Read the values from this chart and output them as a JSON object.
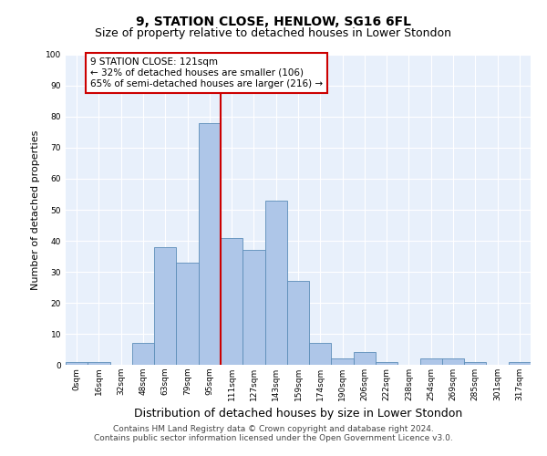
{
  "title": "9, STATION CLOSE, HENLOW, SG16 6FL",
  "subtitle": "Size of property relative to detached houses in Lower Stondon",
  "xlabel": "Distribution of detached houses by size in Lower Stondon",
  "ylabel": "Number of detached properties",
  "bin_labels": [
    "0sqm",
    "16sqm",
    "32sqm",
    "48sqm",
    "63sqm",
    "79sqm",
    "95sqm",
    "111sqm",
    "127sqm",
    "143sqm",
    "159sqm",
    "174sqm",
    "190sqm",
    "206sqm",
    "222sqm",
    "238sqm",
    "254sqm",
    "269sqm",
    "285sqm",
    "301sqm",
    "317sqm"
  ],
  "bar_heights": [
    1,
    1,
    0,
    7,
    38,
    33,
    78,
    41,
    37,
    53,
    27,
    7,
    2,
    4,
    1,
    0,
    2,
    2,
    1,
    0,
    1
  ],
  "bar_color": "#aec6e8",
  "bar_edge_color": "#5b8db8",
  "vline_x": 7.0,
  "vline_color": "#cc0000",
  "annotation_text": "9 STATION CLOSE: 121sqm\n← 32% of detached houses are smaller (106)\n65% of semi-detached houses are larger (216) →",
  "annotation_box_color": "#ffffff",
  "annotation_box_edge_color": "#cc0000",
  "ylim": [
    0,
    100
  ],
  "yticks": [
    0,
    10,
    20,
    30,
    40,
    50,
    60,
    70,
    80,
    90,
    100
  ],
  "background_color": "#e8f0fb",
  "grid_color": "#ffffff",
  "footer_line1": "Contains HM Land Registry data © Crown copyright and database right 2024.",
  "footer_line2": "Contains public sector information licensed under the Open Government Licence v3.0.",
  "title_fontsize": 10,
  "subtitle_fontsize": 9,
  "xlabel_fontsize": 9,
  "ylabel_fontsize": 8,
  "annotation_fontsize": 7.5,
  "footer_fontsize": 6.5,
  "tick_fontsize": 6.5
}
